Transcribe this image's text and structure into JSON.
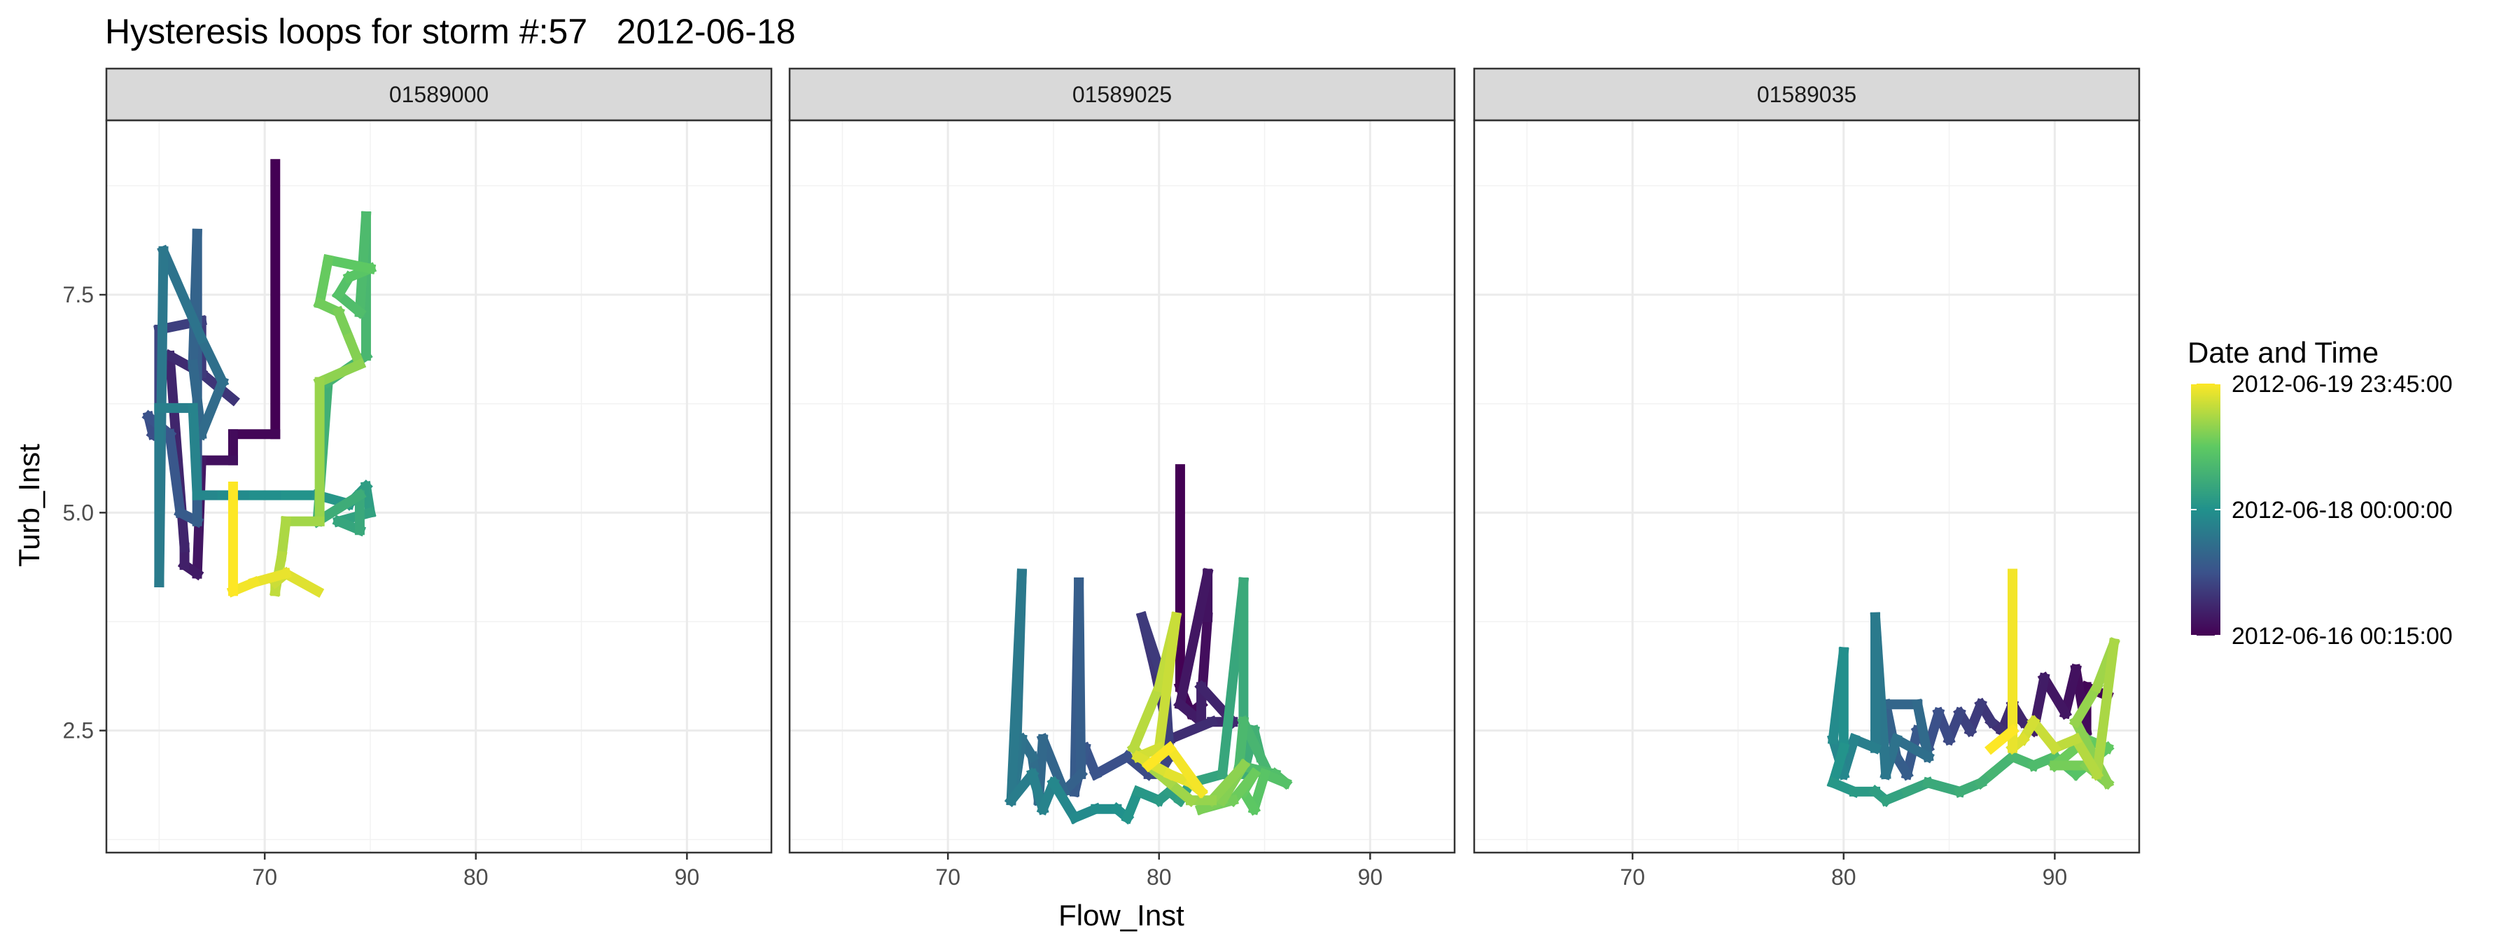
{
  "chart_data": {
    "type": "line",
    "title": "Hysteresis loops for storm #:57   2012-06-18",
    "xlabel": "Flow_Inst",
    "ylabel": "Turb_Inst",
    "xlim": [
      62.5,
      94
    ],
    "ylim": [
      1.1,
      9.5
    ],
    "x_ticks": [
      70,
      80,
      90
    ],
    "y_ticks": [
      2.5,
      5.0,
      7.5
    ],
    "x_tick_labels": [
      "70",
      "80",
      "90"
    ],
    "y_tick_labels": [
      "2.5",
      "5.0",
      "7.5"
    ],
    "grid": true,
    "legend": {
      "title": "Date and Time",
      "position": "right",
      "type": "colorbar",
      "labels": [
        "2012-06-19 23:45:00",
        "2012-06-18 00:00:00",
        "2012-06-16 00:15:00"
      ],
      "label_fractions": [
        1.0,
        0.5,
        0.0
      ],
      "colors": [
        "#440154",
        "#3b528b",
        "#21918c",
        "#5ec962",
        "#fde725"
      ]
    },
    "panels": [
      {
        "label": "01589000",
        "path": [
          [
            70.5,
            9.0
          ],
          [
            70.5,
            5.9
          ],
          [
            68.5,
            5.9
          ],
          [
            68.5,
            5.6
          ],
          [
            67.0,
            5.6
          ],
          [
            66.8,
            4.3
          ],
          [
            66.2,
            4.4
          ],
          [
            66.2,
            4.6
          ],
          [
            65.5,
            6.8
          ],
          [
            67.0,
            6.6
          ],
          [
            68.5,
            6.3
          ],
          [
            67.0,
            6.6
          ],
          [
            67.0,
            7.2
          ],
          [
            65.0,
            7.1
          ],
          [
            65.0,
            6.0
          ],
          [
            64.7,
            5.9
          ],
          [
            64.5,
            6.1
          ],
          [
            65.5,
            5.9
          ],
          [
            66.0,
            5.0
          ],
          [
            66.8,
            4.9
          ],
          [
            66.8,
            8.2
          ],
          [
            66.6,
            6.7
          ],
          [
            67.0,
            5.9
          ],
          [
            68.0,
            6.5
          ],
          [
            67.0,
            7.0
          ],
          [
            65.2,
            8.0
          ],
          [
            65.0,
            4.2
          ],
          [
            65.0,
            6.2
          ],
          [
            66.6,
            6.2
          ],
          [
            66.8,
            5.2
          ],
          [
            68.0,
            5.2
          ],
          [
            69.5,
            5.2
          ],
          [
            71.0,
            5.2
          ],
          [
            72.5,
            5.2
          ],
          [
            74.0,
            5.1
          ],
          [
            74.8,
            5.3
          ],
          [
            75.0,
            5.0
          ],
          [
            73.5,
            4.9
          ],
          [
            74.5,
            4.8
          ],
          [
            74.5,
            5.2
          ],
          [
            72.5,
            4.9
          ],
          [
            73.0,
            6.5
          ],
          [
            74.8,
            6.8
          ],
          [
            74.8,
            8.4
          ],
          [
            74.5,
            7.3
          ],
          [
            73.5,
            7.5
          ],
          [
            74.0,
            7.7
          ],
          [
            75.0,
            7.8
          ],
          [
            73.0,
            7.9
          ],
          [
            72.6,
            7.4
          ],
          [
            73.5,
            7.3
          ],
          [
            74.0,
            7.0
          ],
          [
            74.5,
            6.7
          ],
          [
            72.6,
            6.5
          ],
          [
            72.6,
            4.9
          ],
          [
            71.0,
            4.9
          ],
          [
            70.8,
            4.5
          ],
          [
            70.5,
            4.1
          ],
          [
            70.5,
            4.2
          ],
          [
            71.0,
            4.3
          ],
          [
            72.5,
            4.1
          ],
          [
            71.0,
            4.3
          ],
          [
            69.5,
            4.2
          ],
          [
            68.5,
            4.1
          ],
          [
            68.5,
            5.3
          ]
        ]
      },
      {
        "label": "01589025",
        "path": [
          [
            81.0,
            5.5
          ],
          [
            81.0,
            3.0
          ],
          [
            81.5,
            2.7
          ],
          [
            82.0,
            2.8
          ],
          [
            82.3,
            3.8
          ],
          [
            82.3,
            4.3
          ],
          [
            81.0,
            2.8
          ],
          [
            82.0,
            2.6
          ],
          [
            82.0,
            3.0
          ],
          [
            83.5,
            2.6
          ],
          [
            82.5,
            2.6
          ],
          [
            80.5,
            2.4
          ],
          [
            79.8,
            3.2
          ],
          [
            79.2,
            3.8
          ],
          [
            80.3,
            3.0
          ],
          [
            80.5,
            2.2
          ],
          [
            80.0,
            2.0
          ],
          [
            79.5,
            2.0
          ],
          [
            78.5,
            2.2
          ],
          [
            77.0,
            2.0
          ],
          [
            76.5,
            2.3
          ],
          [
            76.0,
            1.8
          ],
          [
            76.2,
            4.2
          ],
          [
            76.3,
            2.0
          ],
          [
            75.5,
            1.8
          ],
          [
            74.5,
            2.4
          ],
          [
            74.3,
            1.7
          ],
          [
            74.0,
            2.2
          ],
          [
            73.5,
            2.4
          ],
          [
            73.2,
            1.9
          ],
          [
            73.5,
            4.3
          ],
          [
            73.0,
            1.7
          ],
          [
            74.0,
            2.0
          ],
          [
            74.5,
            1.6
          ],
          [
            75.0,
            1.9
          ],
          [
            76.0,
            1.5
          ],
          [
            77.0,
            1.6
          ],
          [
            78.0,
            1.6
          ],
          [
            78.5,
            1.5
          ],
          [
            79.0,
            1.8
          ],
          [
            80.0,
            1.7
          ],
          [
            80.5,
            1.8
          ],
          [
            81.0,
            1.7
          ],
          [
            81.5,
            1.9
          ],
          [
            83.0,
            2.0
          ],
          [
            84.0,
            4.2
          ],
          [
            84.0,
            2.0
          ],
          [
            84.5,
            2.5
          ],
          [
            84.8,
            2.2
          ],
          [
            85.0,
            2.1
          ],
          [
            84.0,
            2.6
          ],
          [
            83.8,
            2.1
          ],
          [
            85.5,
            2.0
          ],
          [
            86.0,
            1.9
          ],
          [
            85.0,
            2.0
          ],
          [
            84.5,
            1.6
          ],
          [
            84.0,
            1.8
          ],
          [
            84.5,
            2.0
          ],
          [
            83.5,
            1.7
          ],
          [
            82.0,
            1.6
          ],
          [
            83.0,
            1.7
          ],
          [
            84.0,
            2.1
          ],
          [
            82.5,
            1.7
          ],
          [
            81.5,
            1.7
          ],
          [
            80.5,
            1.9
          ],
          [
            79.5,
            2.1
          ],
          [
            78.8,
            2.3
          ],
          [
            80.0,
            3.0
          ],
          [
            80.8,
            3.8
          ],
          [
            80.0,
            2.3
          ],
          [
            79.0,
            2.2
          ],
          [
            80.5,
            2.0
          ],
          [
            81.5,
            1.9
          ],
          [
            82.0,
            1.8
          ],
          [
            80.5,
            2.3
          ],
          [
            79.5,
            2.1
          ]
        ]
      },
      {
        "label": "01589035",
        "path": [
          [
            92.5,
            2.9
          ],
          [
            91.5,
            3.0
          ],
          [
            91.5,
            2.5
          ],
          [
            91.0,
            3.2
          ],
          [
            90.5,
            2.7
          ],
          [
            89.5,
            3.1
          ],
          [
            89.0,
            2.5
          ],
          [
            88.5,
            2.6
          ],
          [
            88.0,
            2.8
          ],
          [
            87.5,
            2.5
          ],
          [
            87.0,
            2.6
          ],
          [
            86.5,
            2.8
          ],
          [
            86.0,
            2.5
          ],
          [
            85.5,
            2.7
          ],
          [
            85.0,
            2.4
          ],
          [
            84.5,
            2.7
          ],
          [
            84.0,
            2.3
          ],
          [
            83.5,
            2.5
          ],
          [
            83.0,
            2.0
          ],
          [
            82.5,
            2.2
          ],
          [
            82.0,
            2.8
          ],
          [
            83.5,
            2.8
          ],
          [
            84.0,
            2.2
          ],
          [
            82.5,
            2.4
          ],
          [
            82.0,
            2.0
          ],
          [
            81.5,
            3.8
          ],
          [
            81.5,
            2.3
          ],
          [
            80.5,
            2.4
          ],
          [
            80.0,
            2.0
          ],
          [
            79.5,
            2.4
          ],
          [
            80.0,
            3.4
          ],
          [
            80.0,
            2.3
          ],
          [
            79.5,
            1.9
          ],
          [
            80.5,
            1.8
          ],
          [
            81.5,
            1.8
          ],
          [
            82.0,
            1.7
          ],
          [
            83.0,
            1.8
          ],
          [
            84.0,
            1.9
          ],
          [
            85.5,
            1.8
          ],
          [
            86.5,
            1.9
          ],
          [
            87.0,
            2.0
          ],
          [
            88.0,
            2.2
          ],
          [
            89.0,
            2.1
          ],
          [
            90.0,
            2.2
          ],
          [
            91.0,
            2.0
          ],
          [
            92.0,
            2.2
          ],
          [
            92.5,
            2.3
          ],
          [
            91.5,
            2.4
          ],
          [
            90.0,
            2.1
          ],
          [
            91.5,
            2.1
          ],
          [
            92.5,
            1.9
          ],
          [
            91.0,
            2.6
          ],
          [
            92.0,
            3.0
          ],
          [
            92.8,
            3.5
          ],
          [
            92.0,
            2.0
          ],
          [
            91.0,
            2.4
          ],
          [
            90.0,
            2.3
          ],
          [
            89.0,
            2.6
          ],
          [
            88.5,
            2.4
          ],
          [
            88.0,
            2.3
          ],
          [
            88.0,
            4.3
          ],
          [
            88.0,
            2.5
          ],
          [
            87.0,
            2.3
          ]
        ]
      }
    ]
  }
}
